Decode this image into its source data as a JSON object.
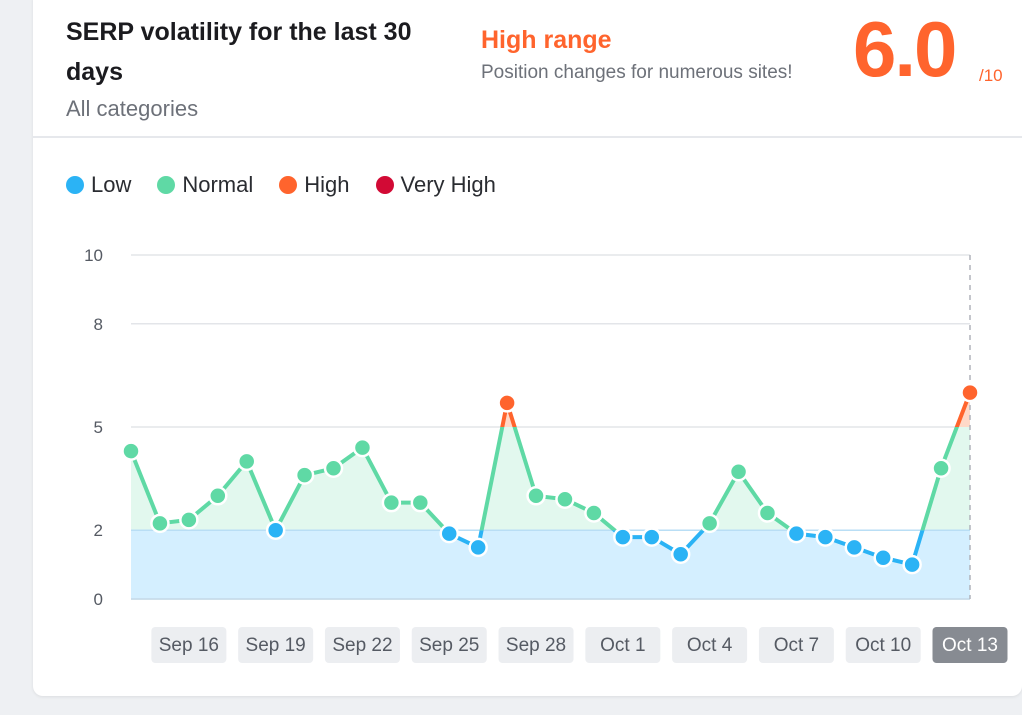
{
  "header": {
    "title": "SERP volatility for the last 30 days",
    "subtitle": "All categories",
    "range_label": "High range",
    "range_desc": "Position changes for numerous sites!",
    "score": "6.0",
    "score_max": "/10"
  },
  "legend": [
    {
      "label": "Low",
      "color": "#2bb3f5"
    },
    {
      "label": "Normal",
      "color": "#5fd9a5"
    },
    {
      "label": "High",
      "color": "#ff642d"
    },
    {
      "label": "Very High",
      "color": "#d20a35"
    }
  ],
  "chart_data": {
    "type": "line",
    "y_ticks": [
      "0",
      "2",
      "5",
      "8",
      "10"
    ],
    "ylim": [
      0,
      10
    ],
    "x_tick_labels": [
      "Sep 16",
      "Sep 19",
      "Sep 22",
      "Sep 25",
      "Sep 28",
      "Oct 1",
      "Oct 4",
      "Oct 7",
      "Oct 10",
      "Oct 13"
    ],
    "selected_label": "Oct 13",
    "x": [
      "Sep 14",
      "Sep 15",
      "Sep 16",
      "Sep 17",
      "Sep 18",
      "Sep 19",
      "Sep 20",
      "Sep 21",
      "Sep 22",
      "Sep 23",
      "Sep 24",
      "Sep 25",
      "Sep 26",
      "Sep 27",
      "Sep 28",
      "Sep 29",
      "Sep 30",
      "Oct 1",
      "Oct 2",
      "Oct 3",
      "Oct 4",
      "Oct 5",
      "Oct 6",
      "Oct 7",
      "Oct 8",
      "Oct 9",
      "Oct 10",
      "Oct 11",
      "Oct 12",
      "Oct 13"
    ],
    "values": [
      4.3,
      2.2,
      2.3,
      3.0,
      4.0,
      2.0,
      3.6,
      3.8,
      4.4,
      2.8,
      2.8,
      1.9,
      1.5,
      5.7,
      3.0,
      2.9,
      2.5,
      1.8,
      1.8,
      1.3,
      2.2,
      3.7,
      2.5,
      1.9,
      1.8,
      1.5,
      1.2,
      1.0,
      3.8,
      6.0
    ],
    "thresholds": {
      "low_max": 2,
      "normal_max": 5,
      "high_max": 8
    },
    "grid": true
  }
}
